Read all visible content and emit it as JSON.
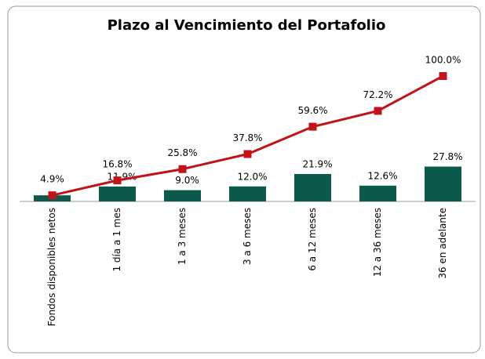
{
  "chart_data": {
    "type": "bar_line",
    "title": "Plazo al Vencimiento del Portafolio",
    "categories": [
      "Fondos disponibles netos",
      "1 día a 1 mes",
      "1 a 3 meses",
      "3 a 6 meses",
      "6 a 12 meses",
      "12 a 36 meses",
      "36 en adelante"
    ],
    "series": [
      {
        "type": "bar",
        "color": "#0b5a4b",
        "values": [
          4.9,
          11.9,
          9.0,
          12.0,
          21.9,
          12.6,
          27.8
        ],
        "value_labels": [
          null,
          "11.9%",
          "9.0%",
          "12.0%",
          "21.9%",
          "12.6%",
          "27.8%"
        ]
      },
      {
        "type": "line",
        "color": "#c0141a",
        "values": [
          4.9,
          16.8,
          25.8,
          37.8,
          59.6,
          72.2,
          100.0
        ],
        "value_labels": [
          "4.9%",
          "16.8%",
          "25.8%",
          "37.8%",
          "59.6%",
          "72.2%",
          "100.0%"
        ]
      }
    ]
  }
}
